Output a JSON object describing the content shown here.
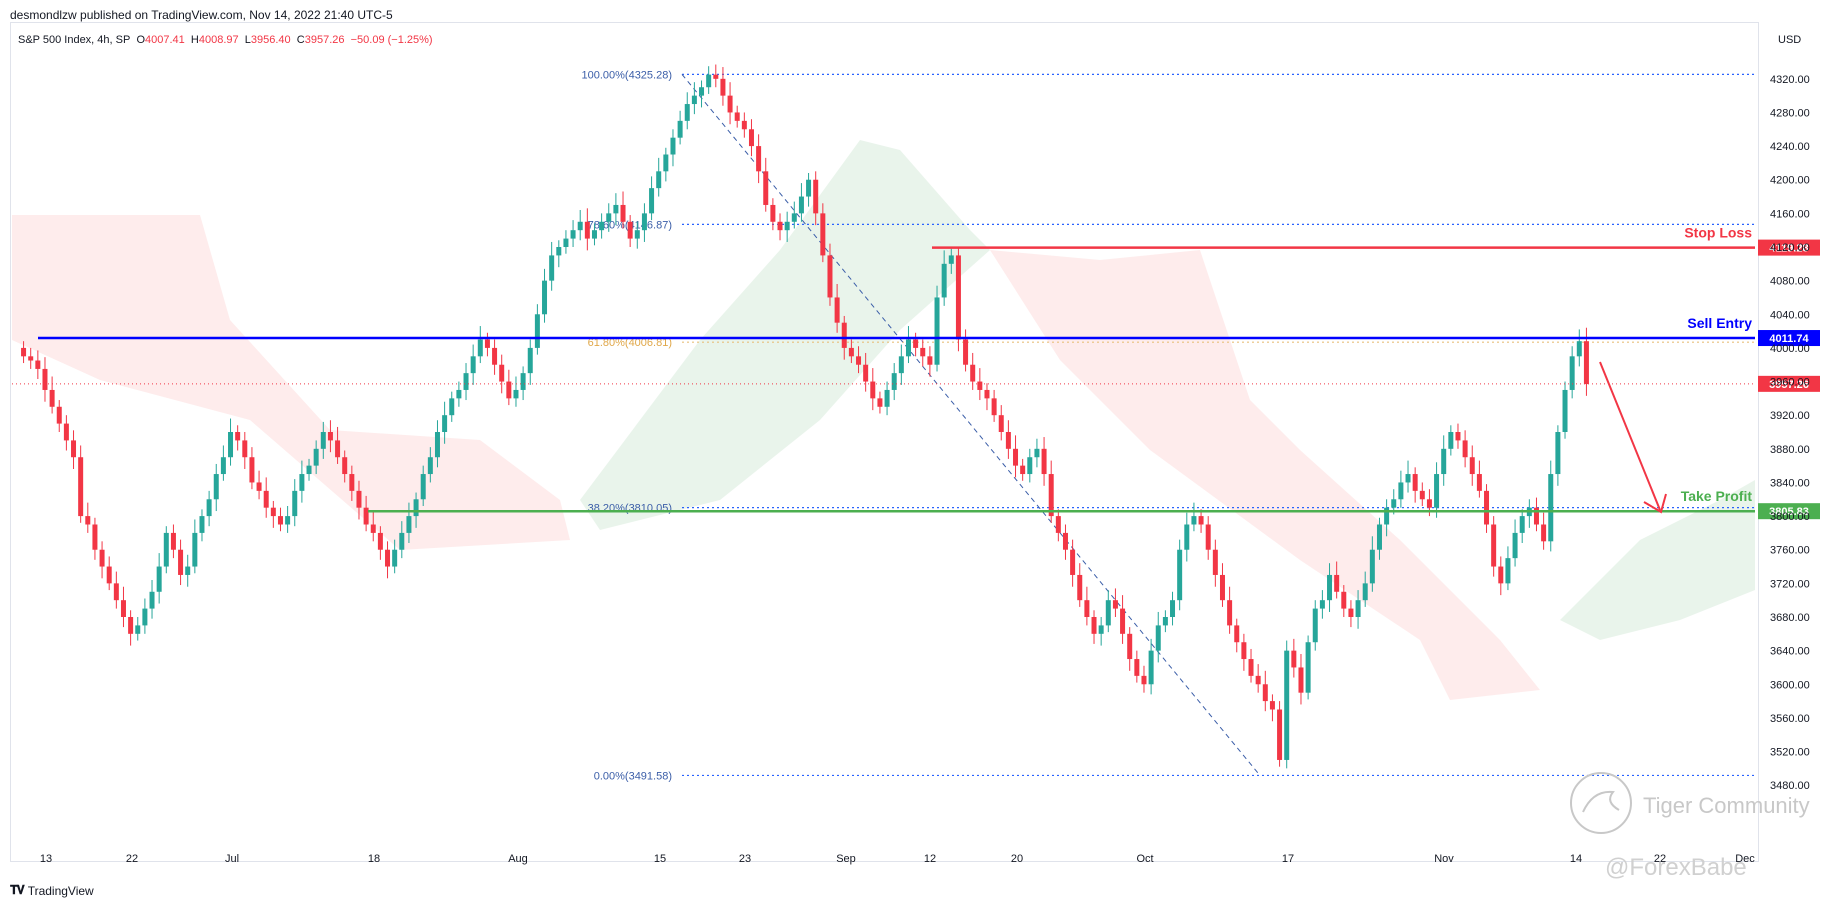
{
  "header": {
    "published": "desmondlzw published on TradingView.com, Nov 14, 2022 21:40 UTC-5"
  },
  "legend": {
    "symbol": "S&P 500 Index, 4h, SP",
    "o_label": "O",
    "o": "4007.41",
    "h_label": "H",
    "h": "4008.97",
    "l_label": "L",
    "l": "3956.40",
    "c_label": "C",
    "c": "3957.26",
    "change": "−50.09 (−1.25%)"
  },
  "currency": "USD",
  "footer": {
    "brand": "TradingView"
  },
  "watermark": {
    "line1": "Tiger Community",
    "line2": "@ForexBabe"
  },
  "colors": {
    "up": "#26a69a",
    "down": "#f23645",
    "fib": "#2962ff",
    "stop": "#f23645",
    "entry": "#0000ff",
    "tp": "#4caf50"
  },
  "chart_data": {
    "type": "candlestick",
    "y_range": [
      3460,
      4340
    ],
    "y_ticks": [
      "4320.00",
      "4280.00",
      "4240.00",
      "4200.00",
      "4160.00",
      "4120.00",
      "4080.00",
      "4040.00",
      "4000.00",
      "3960.00",
      "3920.00",
      "3880.00",
      "3840.00",
      "3800.00",
      "3760.00",
      "3720.00",
      "3680.00",
      "3640.00",
      "3600.00",
      "3560.00",
      "3520.00",
      "3480.00"
    ],
    "y_tick_values": [
      4320,
      4280,
      4240,
      4200,
      4160,
      4120,
      4080,
      4040,
      4000,
      3960,
      3920,
      3880,
      3840,
      3800,
      3760,
      3720,
      3680,
      3640,
      3600,
      3560,
      3520,
      3480
    ],
    "x_ticks": [
      "13",
      "22",
      "Jul",
      "18",
      "Aug",
      "15",
      "23",
      "Sep",
      "12",
      "20",
      "Oct",
      "17",
      "Nov",
      "14",
      "22",
      "Dec"
    ],
    "fib_levels": [
      {
        "label": "100.00%(4325.28)",
        "value": 4325.28
      },
      {
        "label": "78.60%(4146.87)",
        "value": 4146.87
      },
      {
        "label": "61.80%(4006.81)",
        "value": 4006.81
      },
      {
        "label": "38.20%(3810.05)",
        "value": 3810.05
      },
      {
        "label": "0.00%(3491.58)",
        "value": 3491.58
      }
    ],
    "levels": {
      "stop_loss": {
        "label": "Stop Loss",
        "value": 4119.28,
        "value_label": "4119.28"
      },
      "sell_entry": {
        "label": "Sell Entry",
        "value": 4011.74,
        "value_label": "4011.74"
      },
      "last_price": {
        "value": 3957.26,
        "value_label": "3957.26"
      },
      "take_profit": {
        "label": "Take Profit",
        "value": 3805.83,
        "value_label": "3805.83"
      }
    },
    "closes": [
      3990,
      3985,
      3975,
      3950,
      3930,
      3910,
      3890,
      3870,
      3800,
      3790,
      3760,
      3740,
      3720,
      3700,
      3680,
      3660,
      3670,
      3690,
      3710,
      3740,
      3780,
      3760,
      3730,
      3740,
      3780,
      3800,
      3820,
      3850,
      3870,
      3900,
      3890,
      3870,
      3840,
      3830,
      3810,
      3800,
      3790,
      3800,
      3830,
      3850,
      3860,
      3880,
      3900,
      3890,
      3870,
      3850,
      3830,
      3810,
      3790,
      3780,
      3760,
      3740,
      3760,
      3780,
      3800,
      3820,
      3850,
      3870,
      3900,
      3920,
      3940,
      3950,
      3970,
      3990,
      4010,
      4000,
      3980,
      3960,
      3940,
      3950,
      3970,
      4000,
      4040,
      4080,
      4110,
      4120,
      4130,
      4140,
      4150,
      4130,
      4140,
      4150,
      4160,
      4170,
      4150,
      4130,
      4140,
      4160,
      4190,
      4210,
      4230,
      4250,
      4270,
      4290,
      4300,
      4310,
      4325,
      4320,
      4300,
      4280,
      4270,
      4260,
      4240,
      4210,
      4170,
      4150,
      4140,
      4150,
      4160,
      4180,
      4200,
      4160,
      4110,
      4060,
      4030,
      4000,
      3990,
      3980,
      3960,
      3940,
      3930,
      3950,
      3970,
      3990,
      4010,
      4000,
      3990,
      3980,
      4060,
      4100,
      4110,
      4010,
      3980,
      3960,
      3950,
      3940,
      3920,
      3900,
      3880,
      3860,
      3850,
      3870,
      3880,
      3850,
      3800,
      3780,
      3760,
      3730,
      3700,
      3680,
      3660,
      3670,
      3700,
      3690,
      3660,
      3630,
      3610,
      3600,
      3640,
      3670,
      3680,
      3700,
      3760,
      3790,
      3800,
      3790,
      3760,
      3730,
      3700,
      3670,
      3650,
      3630,
      3610,
      3600,
      3580,
      3570,
      3510,
      3640,
      3620,
      3590,
      3650,
      3690,
      3700,
      3730,
      3710,
      3690,
      3680,
      3700,
      3720,
      3760,
      3790,
      3810,
      3820,
      3840,
      3850,
      3830,
      3820,
      3810,
      3850,
      3880,
      3900,
      3890,
      3870,
      3850,
      3830,
      3790,
      3740,
      3720,
      3750,
      3780,
      3800,
      3810,
      3790,
      3770,
      3850,
      3900,
      3950,
      3990,
      4008,
      3957
    ]
  }
}
